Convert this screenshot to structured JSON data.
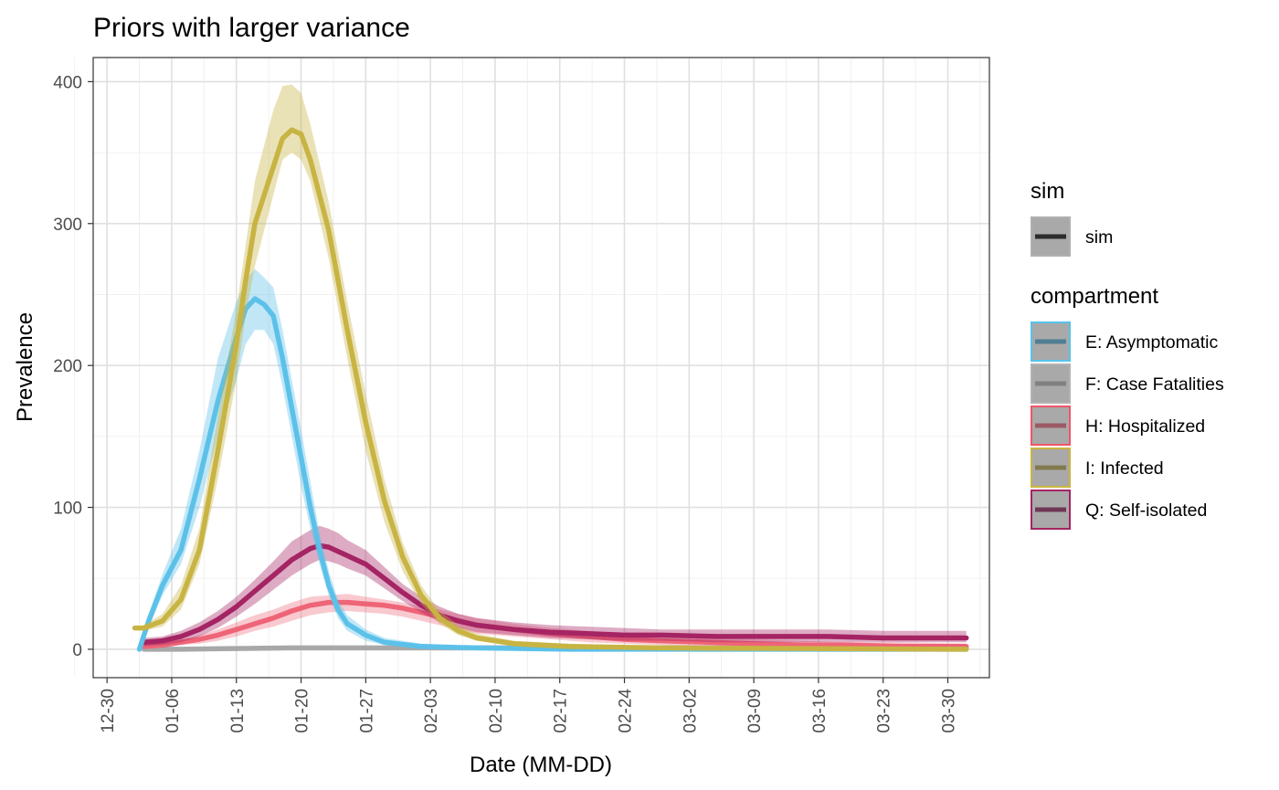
{
  "chart_data": {
    "type": "line",
    "title": "Priors with larger variance",
    "xlabel": "Date (MM-DD)",
    "ylabel": "Prevalence",
    "x_ticks": [
      "12-30",
      "01-06",
      "01-13",
      "01-20",
      "01-27",
      "02-03",
      "02-10",
      "02-17",
      "02-24",
      "03-02",
      "03-09",
      "03-16",
      "03-23",
      "03-30"
    ],
    "y_ticks": [
      0,
      100,
      200,
      300,
      400
    ],
    "xlim_days": [
      -1.5,
      95.5
    ],
    "ylim": [
      -20,
      417
    ],
    "grid": true,
    "legend_position": "right",
    "legends": [
      {
        "title": "sim",
        "entries": [
          {
            "label": "sim",
            "line_color": "#2b2b2b",
            "box_border": "#b0b0b0"
          }
        ]
      },
      {
        "title": "compartment",
        "entries": [
          {
            "label": "E: Asymptomatic",
            "line_color": "#4f7e94",
            "box_border": "#56c3ea"
          },
          {
            "label": "F: Case Fatalities",
            "line_color": "#808080",
            "box_border": "#b3b3b3"
          },
          {
            "label": "H: Hospitalized",
            "line_color": "#9b5a64",
            "box_border": "#ef5669"
          },
          {
            "label": "I: Infected",
            "line_color": "#807a4e",
            "box_border": "#cbb540"
          },
          {
            "label": "Q: Self-isolated",
            "line_color": "#6e3855",
            "box_border": "#a52463"
          }
        ]
      }
    ],
    "series": [
      {
        "name": "F: Case Fatalities",
        "color": "#a8a8a8",
        "band_opacity": 0.35,
        "points": [
          [
            4,
            0,
            0,
            0
          ],
          [
            8,
            0,
            0,
            0
          ],
          [
            14,
            0.5,
            0,
            1
          ],
          [
            20,
            1,
            0,
            2
          ],
          [
            30,
            1,
            0,
            2
          ],
          [
            40,
            1,
            0,
            2
          ],
          [
            60,
            1,
            0,
            2
          ],
          [
            80,
            1,
            0,
            2
          ],
          [
            93,
            1,
            0,
            2
          ]
        ]
      },
      {
        "name": "H: Hospitalized",
        "color": "#ee6577",
        "band_opacity": 0.35,
        "points": [
          [
            4,
            2,
            0,
            3
          ],
          [
            6,
            3,
            1,
            5
          ],
          [
            8,
            5,
            3,
            7
          ],
          [
            10,
            7,
            4,
            10
          ],
          [
            12,
            10,
            6,
            14
          ],
          [
            14,
            14,
            9,
            19
          ],
          [
            16,
            18,
            13,
            24
          ],
          [
            18,
            22,
            16,
            28
          ],
          [
            20,
            27,
            20,
            33
          ],
          [
            22,
            31,
            24,
            37
          ],
          [
            24,
            33,
            26,
            38
          ],
          [
            26,
            33,
            27,
            39
          ],
          [
            28,
            32,
            26,
            37
          ],
          [
            30,
            31,
            25,
            35
          ],
          [
            32,
            29,
            23,
            33
          ],
          [
            34,
            26,
            20,
            30
          ],
          [
            36,
            23,
            17,
            28
          ],
          [
            38,
            20,
            14,
            25
          ],
          [
            40,
            17,
            11,
            22
          ],
          [
            44,
            14,
            9,
            18
          ],
          [
            48,
            11,
            7,
            15
          ],
          [
            52,
            9,
            5,
            13
          ],
          [
            56,
            7,
            4,
            11
          ],
          [
            60,
            6,
            3,
            9
          ],
          [
            65,
            5,
            2,
            8
          ],
          [
            70,
            4,
            1,
            7
          ],
          [
            75,
            3,
            1,
            6
          ],
          [
            80,
            3,
            0,
            5
          ],
          [
            86,
            2,
            0,
            5
          ],
          [
            93,
            2,
            0,
            4
          ]
        ]
      },
      {
        "name": "Q: Self-isolated",
        "color": "#a52463",
        "band_opacity": 0.38,
        "points": [
          [
            4,
            5,
            2,
            8
          ],
          [
            6,
            6,
            3,
            9
          ],
          [
            8,
            9,
            5,
            13
          ],
          [
            10,
            14,
            9,
            19
          ],
          [
            12,
            21,
            15,
            27
          ],
          [
            14,
            30,
            23,
            37
          ],
          [
            16,
            41,
            32,
            49
          ],
          [
            18,
            52,
            42,
            62
          ],
          [
            20,
            63,
            52,
            76
          ],
          [
            22,
            71,
            60,
            84
          ],
          [
            23,
            73,
            63,
            87
          ],
          [
            24,
            72,
            62,
            85
          ],
          [
            25,
            69,
            60,
            82
          ],
          [
            26,
            66,
            57,
            77
          ],
          [
            28,
            60,
            52,
            70
          ],
          [
            30,
            50,
            43,
            58
          ],
          [
            32,
            40,
            34,
            46
          ],
          [
            34,
            31,
            26,
            37
          ],
          [
            36,
            24,
            19,
            30
          ],
          [
            38,
            20,
            15,
            25
          ],
          [
            40,
            17,
            12,
            22
          ],
          [
            44,
            14,
            10,
            19
          ],
          [
            48,
            12,
            8,
            17
          ],
          [
            52,
            11,
            7,
            16
          ],
          [
            56,
            10,
            6,
            15
          ],
          [
            60,
            10,
            6,
            14
          ],
          [
            66,
            9,
            5,
            14
          ],
          [
            72,
            9,
            5,
            14
          ],
          [
            78,
            9,
            5,
            14
          ],
          [
            84,
            8,
            5,
            13
          ],
          [
            93,
            8,
            5,
            13
          ]
        ]
      },
      {
        "name": "E: Asymptomatic",
        "color": "#5cc1e9",
        "band_opacity": 0.38,
        "points": [
          [
            3.5,
            0,
            0,
            0
          ],
          [
            4.5,
            20,
            15,
            25
          ],
          [
            6,
            45,
            38,
            53
          ],
          [
            8,
            70,
            60,
            85
          ],
          [
            10,
            120,
            100,
            140
          ],
          [
            12,
            175,
            150,
            205
          ],
          [
            14,
            220,
            190,
            245
          ],
          [
            15,
            240,
            215,
            260
          ],
          [
            16,
            247,
            225,
            268
          ],
          [
            17,
            243,
            225,
            262
          ],
          [
            18,
            235,
            215,
            255
          ],
          [
            19,
            205,
            185,
            225
          ],
          [
            20,
            170,
            150,
            190
          ],
          [
            21,
            135,
            115,
            155
          ],
          [
            22,
            100,
            85,
            118
          ],
          [
            23,
            70,
            60,
            82
          ],
          [
            24,
            45,
            38,
            55
          ],
          [
            25,
            28,
            22,
            35
          ],
          [
            26,
            18,
            13,
            24
          ],
          [
            28,
            10,
            6,
            14
          ],
          [
            30,
            5,
            3,
            8
          ],
          [
            34,
            2,
            0,
            4
          ],
          [
            40,
            1,
            0,
            2
          ],
          [
            50,
            0,
            0,
            1
          ],
          [
            93,
            0,
            0,
            0
          ]
        ]
      },
      {
        "name": "I: Infected",
        "color": "#c8b443",
        "band_opacity": 0.38,
        "points": [
          [
            3,
            15,
            15,
            16
          ],
          [
            4,
            15,
            13,
            17
          ],
          [
            6,
            20,
            16,
            25
          ],
          [
            8,
            35,
            28,
            45
          ],
          [
            10,
            70,
            60,
            85
          ],
          [
            12,
            140,
            120,
            165
          ],
          [
            14,
            215,
            190,
            240
          ],
          [
            15,
            260,
            235,
            285
          ],
          [
            16,
            300,
            270,
            330
          ],
          [
            18,
            340,
            320,
            380
          ],
          [
            19,
            360,
            345,
            397
          ],
          [
            20,
            366,
            350,
            398
          ],
          [
            21,
            363,
            345,
            392
          ],
          [
            22,
            345,
            330,
            370
          ],
          [
            24,
            295,
            275,
            315
          ],
          [
            26,
            225,
            205,
            245
          ],
          [
            28,
            160,
            140,
            180
          ],
          [
            30,
            105,
            90,
            120
          ],
          [
            32,
            65,
            55,
            75
          ],
          [
            34,
            38,
            32,
            45
          ],
          [
            36,
            22,
            18,
            27
          ],
          [
            38,
            13,
            10,
            17
          ],
          [
            40,
            8,
            6,
            11
          ],
          [
            44,
            4,
            2,
            6
          ],
          [
            50,
            2,
            0,
            4
          ],
          [
            60,
            1,
            0,
            2
          ],
          [
            93,
            0,
            0,
            1
          ]
        ]
      }
    ]
  }
}
